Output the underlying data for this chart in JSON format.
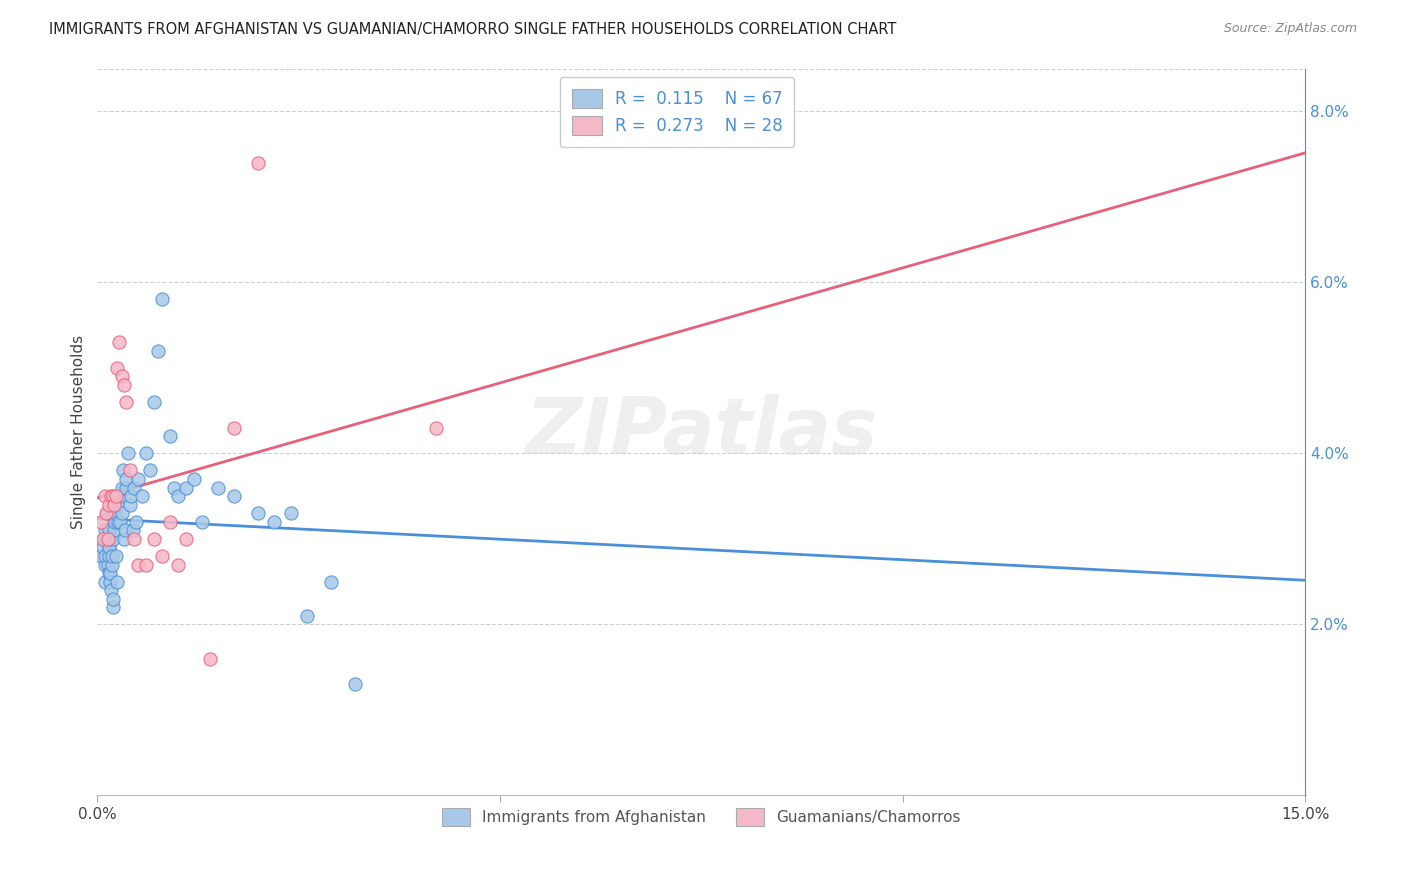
{
  "title": "IMMIGRANTS FROM AFGHANISTAN VS GUAMANIAN/CHAMORRO SINGLE FATHER HOUSEHOLDS CORRELATION CHART",
  "source": "Source: ZipAtlas.com",
  "ylabel": "Single Father Households",
  "ylabel_right_ticks": [
    "2.0%",
    "4.0%",
    "6.0%",
    "8.0%"
  ],
  "ylabel_right_tick_vals": [
    0.02,
    0.04,
    0.06,
    0.08
  ],
  "xlim": [
    0.0,
    0.15
  ],
  "ylim": [
    0.0,
    0.085
  ],
  "legend_R1": "0.115",
  "legend_N1": "67",
  "legend_R2": "0.273",
  "legend_N2": "28",
  "color_blue": "#a8c8e8",
  "color_blue_line": "#4a90d9",
  "color_pink": "#f5b8c8",
  "color_pink_line": "#e8607a",
  "watermark_text": "ZIPatlas",
  "blue_x": [
    0.0005,
    0.0007,
    0.0008,
    0.001,
    0.001,
    0.001,
    0.001,
    0.001,
    0.0012,
    0.0013,
    0.0014,
    0.0015,
    0.0015,
    0.0015,
    0.0015,
    0.0015,
    0.0016,
    0.0016,
    0.0017,
    0.0018,
    0.0018,
    0.0019,
    0.0019,
    0.002,
    0.0021,
    0.0022,
    0.0022,
    0.0023,
    0.0024,
    0.0025,
    0.0026,
    0.0027,
    0.0028,
    0.003,
    0.0031,
    0.0032,
    0.0033,
    0.0034,
    0.0035,
    0.0036,
    0.0038,
    0.004,
    0.0042,
    0.0044,
    0.0046,
    0.0048,
    0.005,
    0.0055,
    0.006,
    0.0065,
    0.007,
    0.0075,
    0.008,
    0.009,
    0.0095,
    0.01,
    0.011,
    0.012,
    0.013,
    0.015,
    0.017,
    0.02,
    0.022,
    0.024,
    0.026,
    0.029,
    0.032
  ],
  "blue_y": [
    0.028,
    0.029,
    0.03,
    0.025,
    0.027,
    0.028,
    0.03,
    0.031,
    0.033,
    0.027,
    0.029,
    0.026,
    0.028,
    0.029,
    0.03,
    0.031,
    0.025,
    0.026,
    0.024,
    0.027,
    0.028,
    0.022,
    0.023,
    0.03,
    0.031,
    0.032,
    0.033,
    0.028,
    0.025,
    0.034,
    0.032,
    0.035,
    0.032,
    0.033,
    0.036,
    0.038,
    0.03,
    0.031,
    0.036,
    0.037,
    0.04,
    0.034,
    0.035,
    0.031,
    0.036,
    0.032,
    0.037,
    0.035,
    0.04,
    0.038,
    0.046,
    0.052,
    0.058,
    0.042,
    0.036,
    0.035,
    0.036,
    0.037,
    0.032,
    0.036,
    0.035,
    0.033,
    0.032,
    0.033,
    0.021,
    0.025,
    0.013
  ],
  "pink_x": [
    0.0005,
    0.0007,
    0.0009,
    0.0011,
    0.0013,
    0.0015,
    0.0017,
    0.0019,
    0.0021,
    0.0023,
    0.0025,
    0.0027,
    0.003,
    0.0033,
    0.0036,
    0.004,
    0.0045,
    0.005,
    0.006,
    0.007,
    0.008,
    0.009,
    0.01,
    0.011,
    0.014,
    0.017,
    0.02,
    0.042
  ],
  "pink_y": [
    0.032,
    0.03,
    0.035,
    0.033,
    0.03,
    0.034,
    0.035,
    0.035,
    0.034,
    0.035,
    0.05,
    0.053,
    0.049,
    0.048,
    0.046,
    0.038,
    0.03,
    0.027,
    0.027,
    0.03,
    0.028,
    0.032,
    0.027,
    0.03,
    0.016,
    0.043,
    0.074,
    0.043
  ]
}
